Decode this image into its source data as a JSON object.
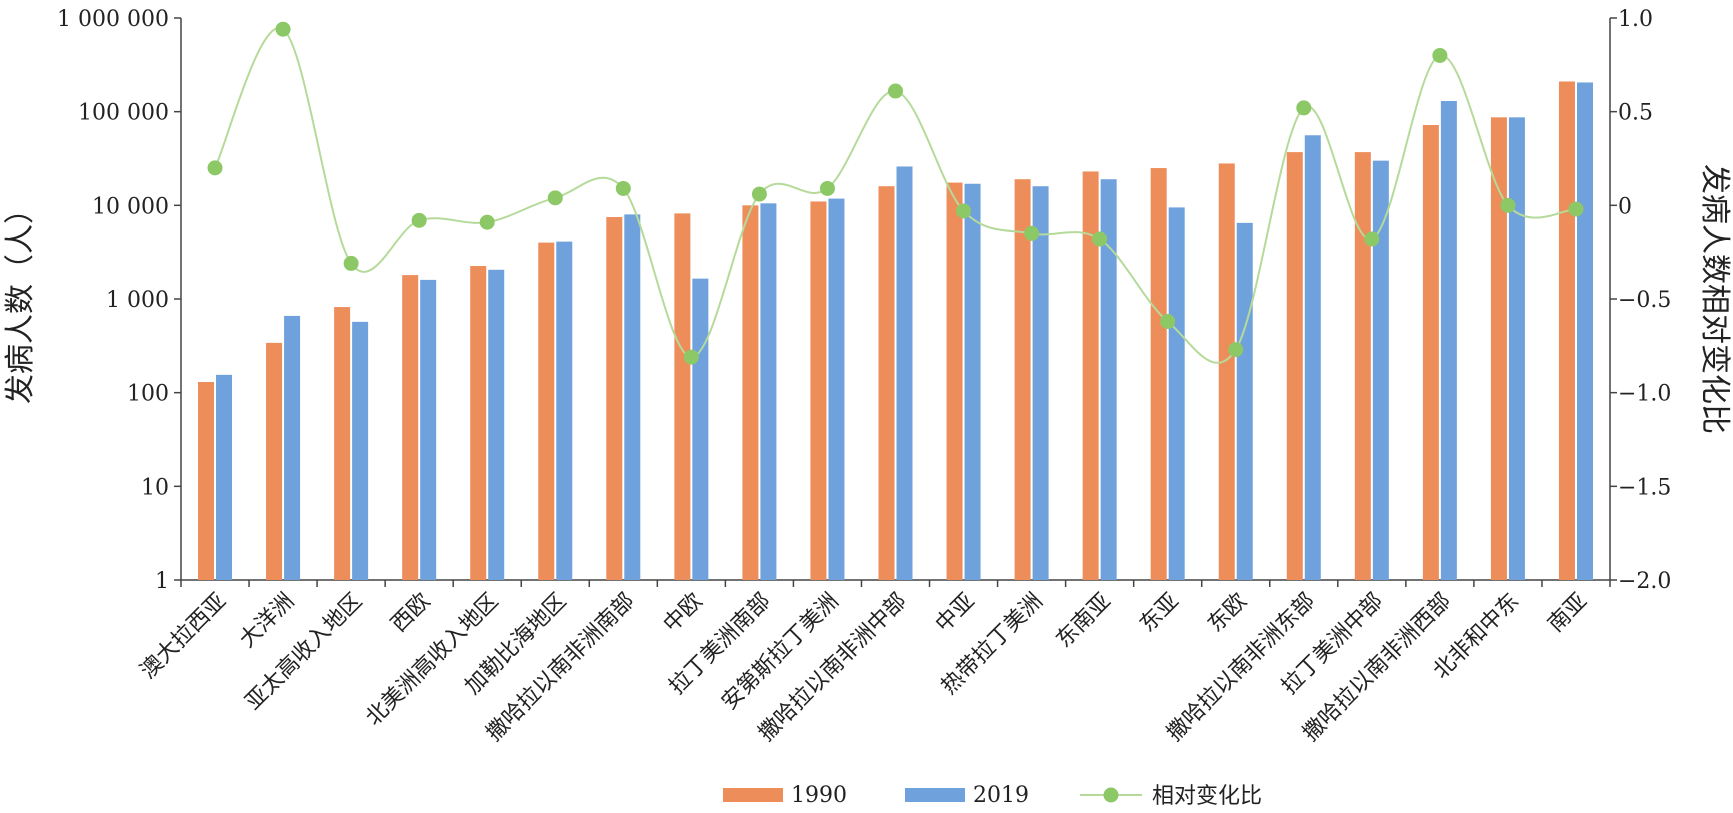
{
  "chart_data": {
    "type": "bar",
    "categories": [
      "澳大拉西亚",
      "大洋洲",
      "亚太高收入地区",
      "西欧",
      "北美洲高收入地区",
      "加勒比海地区",
      "撒哈拉以南非洲南部",
      "中欧",
      "拉丁美洲南部",
      "安第斯拉丁美洲",
      "撒哈拉以南非洲中部",
      "中亚",
      "热带拉丁美洲",
      "东南亚",
      "东亚",
      "东欧",
      "撒哈拉以南非洲东部",
      "拉丁美洲中部",
      "撒哈拉以南非洲西部",
      "北非和中东",
      "南亚"
    ],
    "series": [
      {
        "name": "1990",
        "kind": "bar",
        "axis": "left",
        "color": "#ED8D5A",
        "values": [
          130,
          340,
          820,
          1800,
          2250,
          4000,
          7500,
          8200,
          10000,
          11000,
          16000,
          17500,
          19000,
          23000,
          25000,
          28000,
          37000,
          37000,
          72000,
          87000,
          210000
        ]
      },
      {
        "name": "2019",
        "kind": "bar",
        "axis": "left",
        "color": "#6FA2DC",
        "values": [
          155,
          660,
          570,
          1600,
          2050,
          4100,
          8000,
          1650,
          10500,
          11800,
          26000,
          17000,
          16000,
          19000,
          9500,
          6500,
          56000,
          30000,
          130000,
          87000,
          205000
        ]
      },
      {
        "name": "相对变化比",
        "kind": "line",
        "axis": "right",
        "color": "#8DC866",
        "line_color": "#B5DA9A",
        "values": [
          0.2,
          0.94,
          -0.31,
          -0.08,
          -0.09,
          0.04,
          0.09,
          -0.81,
          0.06,
          0.09,
          0.61,
          -0.03,
          -0.15,
          -0.18,
          -0.62,
          -0.77,
          0.52,
          -0.18,
          0.8,
          0.0,
          -0.02
        ]
      }
    ],
    "y_left": {
      "title": "发病人数（人）",
      "scale": "log",
      "ylim": [
        1,
        1000000
      ],
      "ticks": [
        1,
        10,
        100,
        1000,
        10000,
        100000,
        1000000
      ],
      "tick_labels": [
        "1",
        "10",
        "100",
        "1 000",
        "10 000",
        "100 000",
        "1 000 000"
      ]
    },
    "y_right": {
      "title": "发病人数相对变化比",
      "scale": "linear",
      "ylim": [
        -2.0,
        1.0
      ],
      "ticks": [
        1.0,
        0.5,
        0,
        -0.5,
        -1.0,
        -1.5,
        -2.0
      ],
      "tick_labels": [
        "1.0",
        "0.5",
        "0",
        "−0.5",
        "−1.0",
        "−1.5",
        "−2.0"
      ]
    },
    "grid": false,
    "legend_position": "bottom-center",
    "legend": [
      "1990",
      "2019",
      "相对变化比"
    ]
  }
}
